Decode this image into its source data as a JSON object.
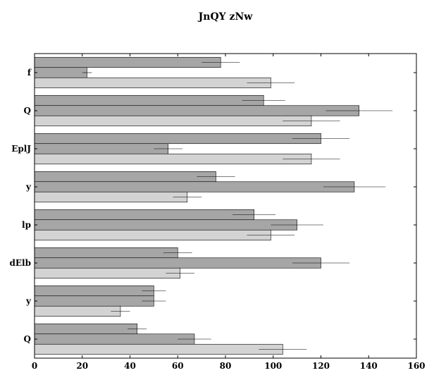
{
  "chart_data": {
    "type": "bar",
    "orientation": "horizontal",
    "title": "JnQY zNw",
    "xlabel": "",
    "ylabel": "",
    "xlim": [
      0,
      160
    ],
    "xticks": [
      0,
      20,
      40,
      60,
      80,
      100,
      120,
      140,
      160
    ],
    "grid": false,
    "categories": [
      "f",
      "Q",
      "EplJ",
      "y",
      "lp",
      "dElb",
      "y",
      "Q"
    ],
    "series": [
      {
        "color": "#a6a6a6",
        "values": [
          78,
          96,
          120,
          76,
          92,
          60,
          50,
          43
        ],
        "errors": [
          8,
          9,
          12,
          8,
          9,
          6,
          5,
          4
        ]
      },
      {
        "color": "#a6a6a6",
        "values": [
          22,
          136,
          56,
          134,
          110,
          120,
          50,
          67
        ],
        "errors": [
          2,
          14,
          6,
          13,
          11,
          12,
          5,
          7
        ]
      },
      {
        "color": "#d3d3d3",
        "values": [
          99,
          116,
          116,
          64,
          99,
          61,
          36,
          104
        ],
        "errors": [
          10,
          12,
          12,
          6,
          10,
          6,
          4,
          10
        ]
      }
    ]
  }
}
